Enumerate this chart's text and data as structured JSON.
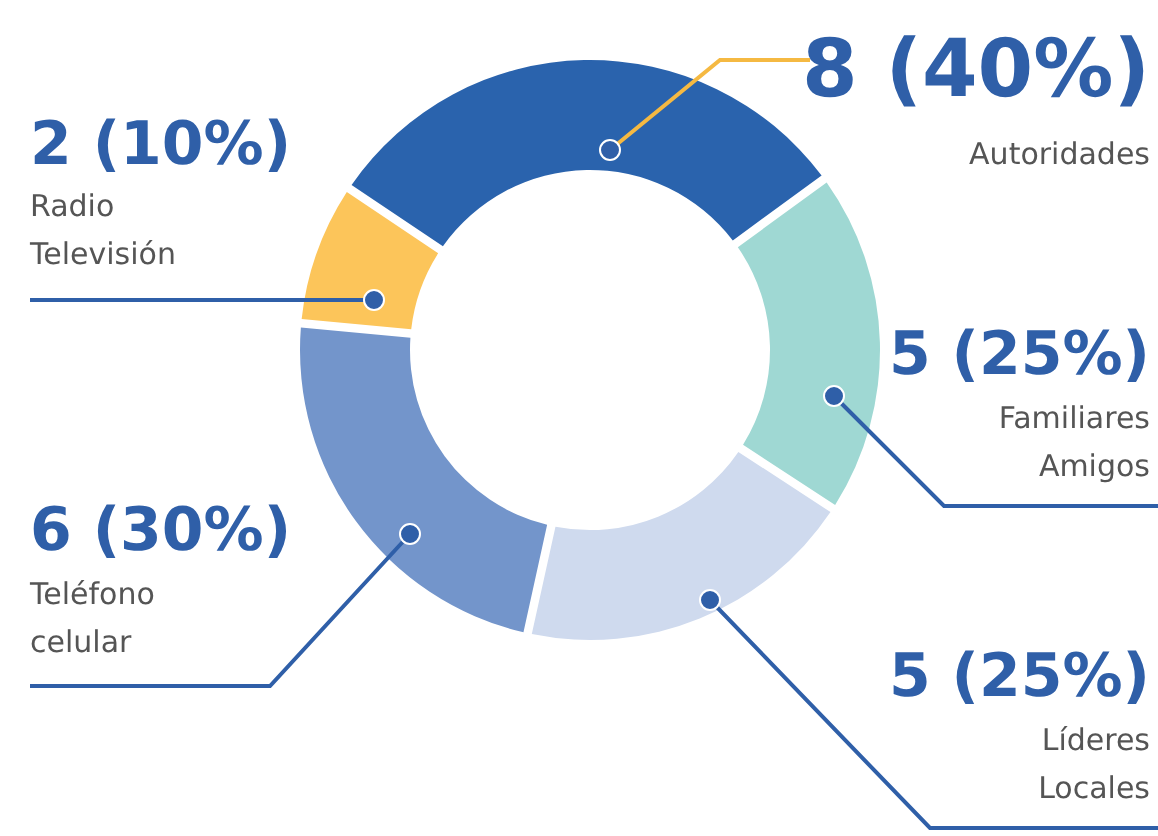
{
  "chart_data": {
    "type": "donut",
    "categories": [
      "Autoridades",
      "Familiares Amigos",
      "Líderes Locales",
      "Teléfono celular",
      "Radio Televisión"
    ],
    "values": [
      8,
      5,
      5,
      6,
      2
    ],
    "value_labels": [
      "8 (40%)",
      "5 (25%)",
      "5 (25%)",
      "6 (30%)",
      "2 (10%)"
    ],
    "colors": [
      "#2a63ad",
      "#9fd8d3",
      "#cfdaee",
      "#7395cb",
      "#fcc55a"
    ]
  }
}
